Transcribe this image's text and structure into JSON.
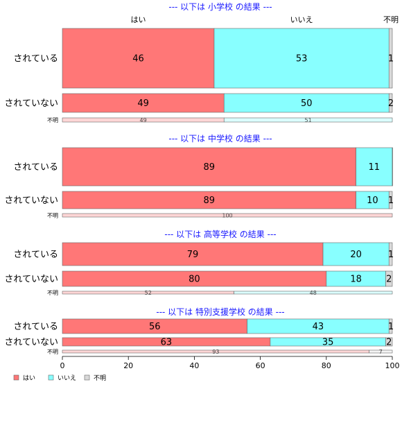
{
  "chart_data": {
    "type": "bar",
    "orientation": "horizontal",
    "stacked": true,
    "xlim": [
      0,
      100
    ],
    "x_ticks": [
      "0",
      "20",
      "40",
      "60",
      "80",
      "100"
    ],
    "series": [
      {
        "name": "はい",
        "color": "#ff7777"
      },
      {
        "name": "いいえ",
        "color": "#88ffff"
      },
      {
        "name": "不明",
        "color": "#d9d9d9"
      }
    ],
    "top_column_labels": [
      "はい",
      "いいえ",
      "不明"
    ],
    "legend": {
      "placement": "bottom-left",
      "items": [
        "はい",
        "いいえ",
        "不明"
      ]
    },
    "panels": [
      {
        "title": "--- 以下は 小学校 の結果 ---",
        "rows": [
          {
            "label": "されている",
            "values": [
              46,
              53,
              1
            ],
            "value_labels": [
              "46",
              "53",
              "1"
            ]
          },
          {
            "label": "されていない",
            "values": [
              49,
              50,
              2
            ],
            "value_labels": [
              "49",
              "50",
              "2"
            ]
          },
          {
            "label": "不明",
            "values": [
              49,
              51,
              0
            ],
            "value_labels": [
              "49",
              "51",
              ""
            ]
          }
        ]
      },
      {
        "title": "--- 以下は 中学校 の結果 ---",
        "rows": [
          {
            "label": "されている",
            "values": [
              89,
              11,
              0.4
            ],
            "value_labels": [
              "89",
              "11",
              ""
            ]
          },
          {
            "label": "されていない",
            "values": [
              89,
              10,
              1
            ],
            "value_labels": [
              "89",
              "10",
              "1"
            ]
          },
          {
            "label": "不明",
            "values": [
              100,
              0,
              0
            ],
            "value_labels": [
              "100",
              "",
              ""
            ]
          }
        ]
      },
      {
        "title": "--- 以下は 高等学校 の結果 ---",
        "rows": [
          {
            "label": "されている",
            "values": [
              79,
              20,
              1
            ],
            "value_labels": [
              "79",
              "20",
              "1"
            ]
          },
          {
            "label": "されていない",
            "values": [
              80,
              18,
              2
            ],
            "value_labels": [
              "80",
              "18",
              "2"
            ]
          },
          {
            "label": "不明",
            "values": [
              52,
              48,
              0
            ],
            "value_labels": [
              "52",
              "48",
              ""
            ]
          }
        ]
      },
      {
        "title": "--- 以下は 特別支援学校 の結果 ---",
        "rows": [
          {
            "label": "されている",
            "values": [
              56,
              43,
              1
            ],
            "value_labels": [
              "56",
              "43",
              "1"
            ]
          },
          {
            "label": "されていない",
            "values": [
              63,
              35,
              2
            ],
            "value_labels": [
              "63",
              "35",
              "2"
            ]
          },
          {
            "label": "不明",
            "values": [
              93,
              0,
              7
            ],
            "value_labels": [
              "93",
              "",
              "7"
            ]
          }
        ]
      }
    ]
  }
}
